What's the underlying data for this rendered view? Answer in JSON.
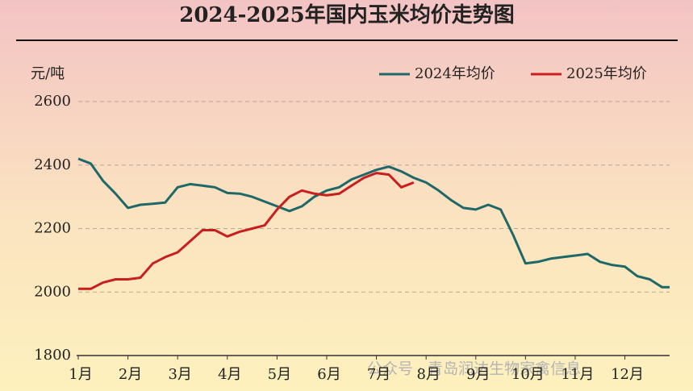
{
  "chart_data": {
    "type": "line",
    "title": "2024-2025年国内玉米均价走势图",
    "y_label": "元/吨",
    "watermark": "公众号 · 青岛润达生物家禽信息",
    "x": [
      1,
      1.25,
      1.5,
      1.75,
      2,
      2.25,
      2.5,
      2.75,
      3,
      3.25,
      3.5,
      3.75,
      4,
      4.25,
      4.5,
      4.75,
      5,
      5.25,
      5.5,
      5.75,
      6,
      6.25,
      6.5,
      6.75,
      7,
      7.25,
      7.5,
      7.75,
      8,
      8.25,
      8.5,
      8.75,
      9,
      9.25,
      9.5,
      9.75,
      10,
      10.25,
      10.5,
      10.75,
      11,
      11.25,
      11.5,
      11.75,
      12,
      12.25,
      12.5,
      12.75,
      12.9
    ],
    "series": [
      {
        "name": "2024年均价",
        "color": "#1f6868",
        "values": [
          2420,
          2405,
          2350,
          2310,
          2265,
          2275,
          2278,
          2282,
          2330,
          2340,
          2335,
          2330,
          2312,
          2310,
          2300,
          2285,
          2270,
          2255,
          2270,
          2300,
          2320,
          2330,
          2355,
          2370,
          2385,
          2395,
          2380,
          2360,
          2345,
          2320,
          2290,
          2265,
          2260,
          2275,
          2260,
          2180,
          2090,
          2095,
          2105,
          2110,
          2115,
          2120,
          2095,
          2085,
          2080,
          2050,
          2040,
          2015,
          2015
        ]
      },
      {
        "name": "2025年均价",
        "color": "#c81e1e",
        "values": [
          2010,
          2010,
          2030,
          2040,
          2040,
          2045,
          2090,
          2110,
          2125,
          2160,
          2195,
          2195,
          2175,
          2190,
          2200,
          2210,
          2260,
          2300,
          2320,
          2310,
          2305,
          2310,
          2335,
          2360,
          2375,
          2370,
          2330,
          2345,
          null,
          null,
          null,
          null,
          null,
          null,
          null,
          null,
          null,
          null,
          null,
          null,
          null,
          null,
          null,
          null,
          null,
          null,
          null,
          null,
          null
        ]
      }
    ],
    "xlim": [
      1,
      12.9
    ],
    "xticks": [
      {
        "value": 1,
        "label": "1月"
      },
      {
        "value": 2,
        "label": "2月"
      },
      {
        "value": 3,
        "label": "3月"
      },
      {
        "value": 4,
        "label": "4月"
      },
      {
        "value": 5,
        "label": "5月"
      },
      {
        "value": 6,
        "label": "6月"
      },
      {
        "value": 7,
        "label": "7月"
      },
      {
        "value": 8,
        "label": "8月"
      },
      {
        "value": 9,
        "label": "9月"
      },
      {
        "value": 10,
        "label": "10月"
      },
      {
        "value": 11,
        "label": "11月"
      },
      {
        "value": 12,
        "label": "12月"
      }
    ],
    "ylim": [
      1800,
      2600
    ],
    "yticks": [
      1800,
      2000,
      2200,
      2400,
      2600
    ],
    "grid": true,
    "legend": "top-right"
  }
}
